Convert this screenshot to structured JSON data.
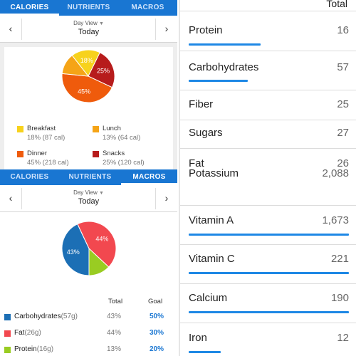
{
  "tabs": [
    "CALORIES",
    "NUTRIENTS",
    "MACROS"
  ],
  "date_view": {
    "label": "Day View",
    "day": "Today"
  },
  "calories": {
    "chart_data": {
      "type": "pie",
      "title": "",
      "slices": [
        {
          "name": "Breakfast",
          "percent": 18,
          "label": "18%",
          "color": "#f7d21c"
        },
        {
          "name": "Snacks",
          "percent": 25,
          "label": "25%",
          "color": "#b71c1c"
        },
        {
          "name": "Dinner",
          "percent": 45,
          "label": "45%",
          "color": "#ef5b0c"
        },
        {
          "name": "Lunch",
          "percent": 13,
          "label": "",
          "color": "#f5a417"
        }
      ]
    },
    "legend": [
      {
        "name": "Breakfast",
        "detail": "18% (87 cal)",
        "color": "#f7d21c"
      },
      {
        "name": "Lunch",
        "detail": "13% (64 cal)",
        "color": "#f5a417"
      },
      {
        "name": "Dinner",
        "detail": "45% (218 cal)",
        "color": "#ef5b0c"
      },
      {
        "name": "Snacks",
        "detail": "25% (120 cal)",
        "color": "#b71c1c"
      }
    ]
  },
  "macros": {
    "chart_data": {
      "type": "pie",
      "title": "",
      "slices": [
        {
          "name": "Carbohydrates",
          "percent": 43,
          "label": "43%",
          "color": "#1c6fb5"
        },
        {
          "name": "Fat",
          "percent": 44,
          "label": "44%",
          "color": "#f2484f"
        },
        {
          "name": "Protein",
          "percent": 13,
          "label": "",
          "color": "#99cc22"
        }
      ]
    },
    "headers": {
      "total": "Total",
      "goal": "Goal"
    },
    "rows": [
      {
        "name": "Carbohydrates",
        "qty": "(57g)",
        "total": "43%",
        "goal": "50%",
        "color": "#1c6fb5"
      },
      {
        "name": "Fat",
        "qty": "(26g)",
        "total": "44%",
        "goal": "30%",
        "color": "#f2484f"
      },
      {
        "name": "Protein",
        "qty": "(16g)",
        "total": "13%",
        "goal": "20%",
        "color": "#99cc22"
      }
    ]
  },
  "nutrients": {
    "header": "Total",
    "accent": "#1e88e5",
    "rows": [
      {
        "name": "Protein",
        "value": "16",
        "progress": 0.45
      },
      {
        "name": "Carbohydrates",
        "value": "57",
        "progress": 0.37
      },
      {
        "name": "Fiber",
        "value": "25"
      },
      {
        "name": "Sugars",
        "value": "27"
      },
      {
        "name": "Fat",
        "value": "26"
      },
      {
        "name": "Potassium",
        "value": "2,088"
      },
      {
        "name": "Vitamin A",
        "value": "1,673",
        "progress": 1.0
      },
      {
        "name": "Vitamin C",
        "value": "221",
        "progress": 1.0
      },
      {
        "name": "Calcium",
        "value": "190",
        "progress": 1.0
      },
      {
        "name": "Iron",
        "value": "12",
        "progress": 0.2
      }
    ]
  }
}
